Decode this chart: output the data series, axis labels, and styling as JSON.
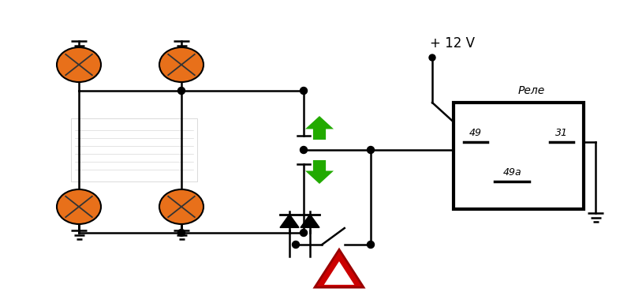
{
  "bg_color": "#ffffff",
  "line_color": "#000000",
  "line_width": 1.8,
  "bulb_color": "#e8701a",
  "bulb_edge_color": "#000000",
  "arrow_color": "#22aa00",
  "triangle_color": "#cc0000",
  "relay_label": "Реле",
  "pin49": "49",
  "pin31": "31",
  "pin49a": "49a",
  "v12_label": "+ 12 V"
}
